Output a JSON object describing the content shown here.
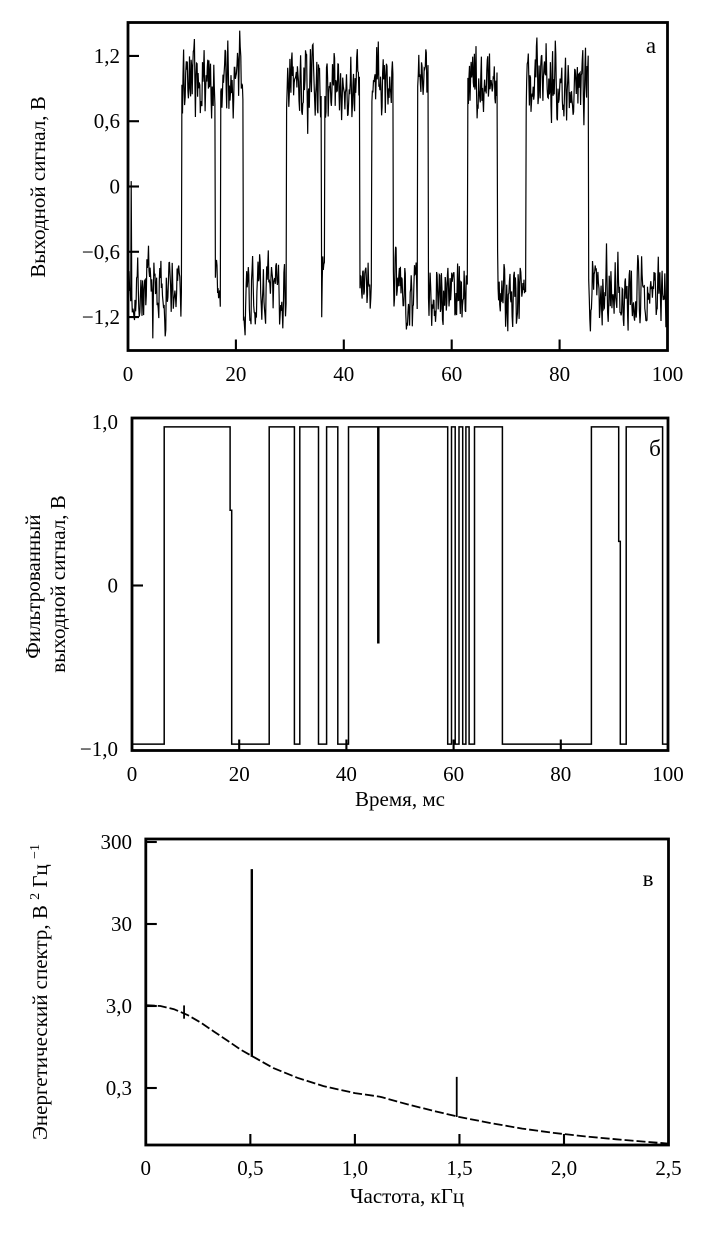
{
  "figure": {
    "panel_labels": [
      "а",
      "б",
      "в"
    ],
    "ink_color": "#000000",
    "background": "#ffffff"
  },
  "chart_data": [
    {
      "type": "line",
      "panel_label": "а",
      "ylabel": "Выходной сигнал, В",
      "xlabel": "",
      "xlim": [
        0,
        100
      ],
      "ylim": [
        -1.5,
        1.5
      ],
      "grid": false,
      "xticks": [
        {
          "v": 0,
          "label": "0",
          "mark": false
        },
        {
          "v": 20,
          "label": "20",
          "mark": true
        },
        {
          "v": 40,
          "label": "40",
          "mark": true
        },
        {
          "v": 60,
          "label": "60",
          "mark": true
        },
        {
          "v": 80,
          "label": "80",
          "mark": true
        },
        {
          "v": 100,
          "label": "100",
          "mark": false
        }
      ],
      "yticks": [
        {
          "v": 1.2,
          "label": "1,2",
          "mark": true
        },
        {
          "v": 0.6,
          "label": "0,6",
          "mark": true
        },
        {
          "v": 0,
          "label": "0",
          "mark": true
        },
        {
          "v": -0.6,
          "label": "−0,6",
          "mark": true
        },
        {
          "v": -1.2,
          "label": "−1,2",
          "mark": true
        }
      ],
      "signal": {
        "kind": "noisy-telegraph",
        "high_level": 0.95,
        "low_level": -0.95,
        "noise_peak": 0.42,
        "sample_step_ms": 0.1,
        "high_segments": [
          [
            10.0,
            16.2
          ],
          [
            17.2,
            21.4
          ],
          [
            29.4,
            35.9
          ],
          [
            36.5,
            43.0
          ],
          [
            45.2,
            49.2
          ],
          [
            53.7,
            55.7
          ],
          [
            63.0,
            68.5
          ],
          [
            73.8,
            85.4
          ]
        ],
        "initial_spike": {
          "t": 0.6,
          "v": 0.05
        }
      }
    },
    {
      "type": "line",
      "panel_label": "б",
      "ylabel_lines": [
        "Фильтрованный",
        "выходной сигнал, В"
      ],
      "xlabel": "Время, мс",
      "xlim": [
        0,
        100
      ],
      "ylim": [
        -1.02,
        1.02
      ],
      "grid": false,
      "xticks": [
        {
          "v": 0,
          "label": "0",
          "mark": false
        },
        {
          "v": 20,
          "label": "20",
          "mark": true
        },
        {
          "v": 40,
          "label": "40",
          "mark": true
        },
        {
          "v": 60,
          "label": "60",
          "mark": true
        },
        {
          "v": 80,
          "label": "80",
          "mark": true
        },
        {
          "v": 100,
          "label": "100",
          "mark": false
        }
      ],
      "yticks": [
        {
          "v": 1,
          "label": "1,0",
          "mark": false
        },
        {
          "v": 0,
          "label": "0",
          "mark": true
        },
        {
          "v": -1,
          "label": "−1,0",
          "mark": false
        }
      ],
      "signal": {
        "kind": "square",
        "high_level": 0.97,
        "low_level": -0.97,
        "transitions": [
          [
            0,
            -0.97
          ],
          [
            6.0,
            0.97
          ],
          [
            18.3,
            0.46
          ],
          [
            18.6,
            -0.97
          ],
          [
            25.6,
            0.97
          ],
          [
            30.3,
            -0.97
          ],
          [
            31.3,
            0.97
          ],
          [
            34.8,
            -0.97
          ],
          [
            36.3,
            0.97
          ],
          [
            38.4,
            -0.97
          ],
          [
            40.4,
            0.97
          ],
          [
            45.85,
            -0.35
          ],
          [
            46.05,
            0.97
          ],
          [
            58.9,
            -0.97
          ],
          [
            59.6,
            0.97
          ],
          [
            60.3,
            -0.97
          ],
          [
            61.0,
            0.97
          ],
          [
            61.7,
            -0.97
          ],
          [
            62.3,
            0.97
          ],
          [
            62.9,
            -0.97
          ],
          [
            63.9,
            0.97
          ],
          [
            69.1,
            -0.97
          ],
          [
            85.7,
            0.97
          ],
          [
            90.8,
            0.27
          ],
          [
            91.1,
            -0.97
          ],
          [
            92.2,
            0.97
          ],
          [
            99.0,
            -0.97
          ]
        ]
      }
    },
    {
      "type": "line",
      "panel_label": "в",
      "ylabel_parts": [
        "Энергетический спектр, В",
        "2",
        " Гц",
        "−1"
      ],
      "xlabel": "Частота, кГц",
      "xlim": [
        0,
        2.5
      ],
      "yscale": "log",
      "ylim": [
        0.06,
        325
      ],
      "grid": false,
      "line_style": "dashed",
      "xticks": [
        {
          "v": 0,
          "label": "0",
          "mark": false
        },
        {
          "v": 0.5,
          "label": "0,5",
          "mark": true
        },
        {
          "v": 1,
          "label": "1,0",
          "mark": true
        },
        {
          "v": 1.5,
          "label": "1,5",
          "mark": true
        },
        {
          "v": 2,
          "label": "2,0",
          "mark": true
        },
        {
          "v": 2.5,
          "label": "2,5",
          "mark": false
        }
      ],
      "yticks": [
        {
          "v": 300,
          "label": "300",
          "mark": true
        },
        {
          "v": 30,
          "label": "30",
          "mark": true
        },
        {
          "v": 3,
          "label": "3,0",
          "mark": true
        },
        {
          "v": 0.3,
          "label": "0,3",
          "mark": true
        }
      ],
      "curve_points": [
        [
          0,
          3.08
        ],
        [
          0.07,
          3.0
        ],
        [
          0.135,
          2.74
        ],
        [
          0.2,
          2.33
        ],
        [
          0.263,
          1.88
        ],
        [
          0.326,
          1.46
        ],
        [
          0.39,
          1.14
        ],
        [
          0.454,
          0.88
        ],
        [
          0.51,
          0.73
        ],
        [
          0.61,
          0.525
        ],
        [
          0.725,
          0.4
        ],
        [
          0.85,
          0.316
        ],
        [
          1.0,
          0.26
        ],
        [
          1.12,
          0.235
        ],
        [
          1.25,
          0.19
        ],
        [
          1.375,
          0.158
        ],
        [
          1.5,
          0.133
        ],
        [
          1.65,
          0.112
        ],
        [
          1.8,
          0.096
        ],
        [
          1.95,
          0.085
        ],
        [
          2.1,
          0.077
        ],
        [
          2.25,
          0.071
        ],
        [
          2.4,
          0.066
        ],
        [
          2.5,
          0.063
        ]
      ],
      "spikes": [
        {
          "f": 0.507,
          "base": 0.72,
          "top": 140
        },
        {
          "f": 1.487,
          "base": 0.133,
          "top": 0.41
        },
        {
          "f": 0.183,
          "base": 2.1,
          "top": 3.05
        }
      ]
    }
  ]
}
